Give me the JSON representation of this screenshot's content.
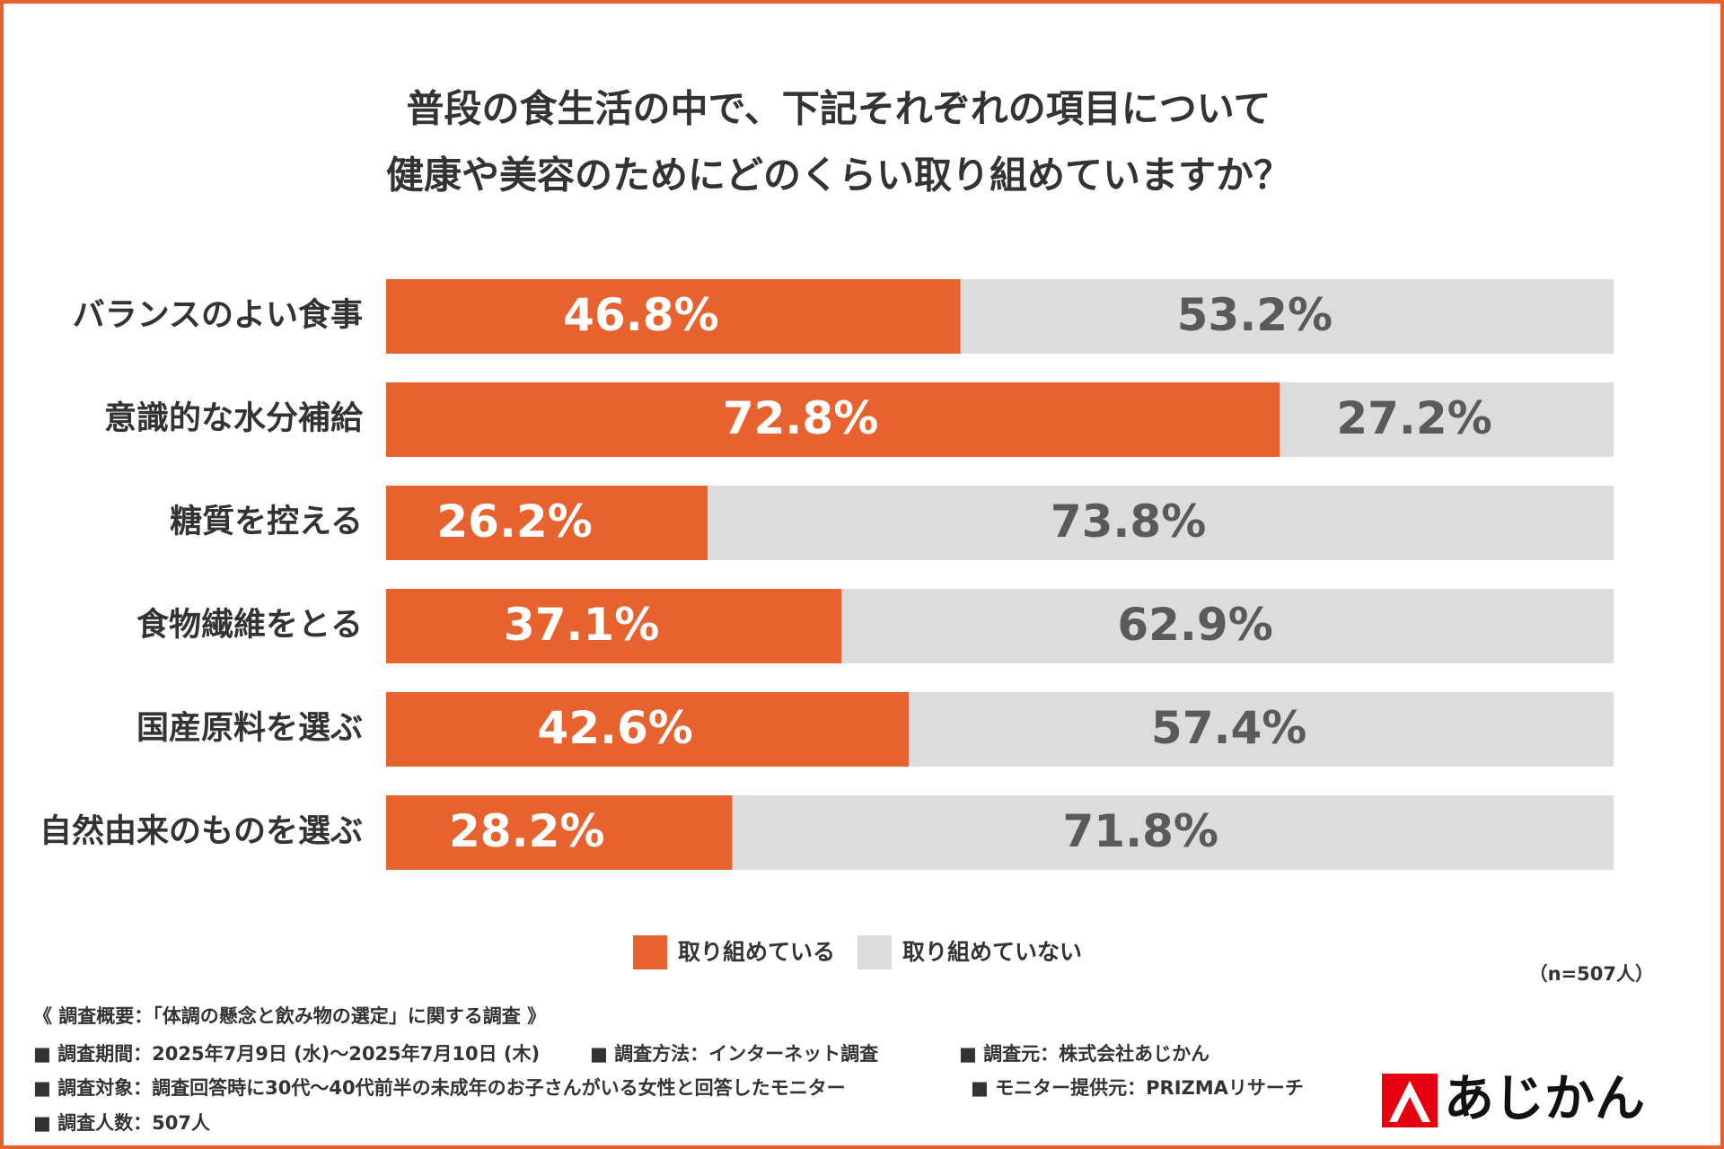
{
  "chart_data": {
    "type": "stacked-bar",
    "orientation": "horizontal",
    "title": [
      "普段の食生活の中で、下記それぞれの項目について",
      "健康や美容のためにどのくらい取り組めていますか？"
    ],
    "categories": [
      "バランスのよい食事",
      "意識的な水分補給",
      "糖質を控える",
      "食物繊維をとる",
      "国産原料を選ぶ",
      "自然由来のものを選ぶ"
    ],
    "series": [
      {
        "name": "取り組めている",
        "color": "#e8622f",
        "label_color": "#ffffff",
        "values": [
          46.8,
          72.8,
          26.2,
          37.1,
          42.6,
          28.2
        ],
        "value_labels": [
          "46.8%",
          "72.8%",
          "26.2%",
          "37.1%",
          "42.6%",
          "28.2%"
        ]
      },
      {
        "name": "取り組めていない",
        "color": "#dcdcdc",
        "label_color": "#5a5a5a",
        "values": [
          53.2,
          27.2,
          73.8,
          62.9,
          57.4,
          71.8
        ],
        "value_labels": [
          "53.2%",
          "27.2%",
          "73.8%",
          "62.9%",
          "57.4%",
          "71.8%"
        ]
      }
    ],
    "xlim": [
      0,
      100
    ],
    "sample_note": "（n=507人）",
    "footnotes": [
      "《 調査概要：「体調の懸念と飲み物の選定」に関する調査 》",
      "■ 調査期間：2025年7月9日 (水)～2025年7月10日 (木)",
      "■ 調査方法：インターネット調査",
      "■ 調査元：株式会社あじかん",
      "■ 調査対象：調査回答時に30代～40代前半の未成年のお子さんがいる女性と回答したモニター",
      "■ モニター提供元：PRIZMAリサーチ",
      "■ 調査人数：507人"
    ],
    "logo": "あじかん"
  }
}
